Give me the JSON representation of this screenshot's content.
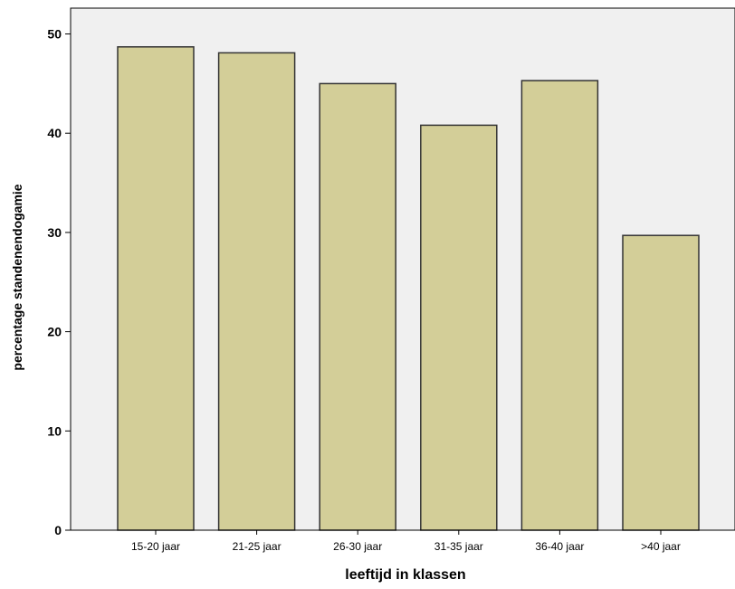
{
  "chart_data": {
    "type": "bar",
    "categories": [
      "15-20 jaar",
      "21-25 jaar",
      "26-30 jaar",
      "31-35 jaar",
      "36-40 jaar",
      ">40 jaar"
    ],
    "values": [
      48.7,
      48.1,
      45.0,
      40.8,
      45.3,
      29.7
    ],
    "title": "",
    "xlabel": "leeftijd in klassen",
    "ylabel": "percentage standenendogamie",
    "ylim": [
      0,
      50
    ],
    "yticks": [
      0,
      10,
      20,
      30,
      40,
      50
    ],
    "grid": false,
    "legend": "none",
    "colors": {
      "plot_background": "#f0f0f0",
      "bar_fill": "#d3ce98",
      "bar_stroke": "#333333",
      "axis": "#000000",
      "text": "#000000"
    }
  }
}
